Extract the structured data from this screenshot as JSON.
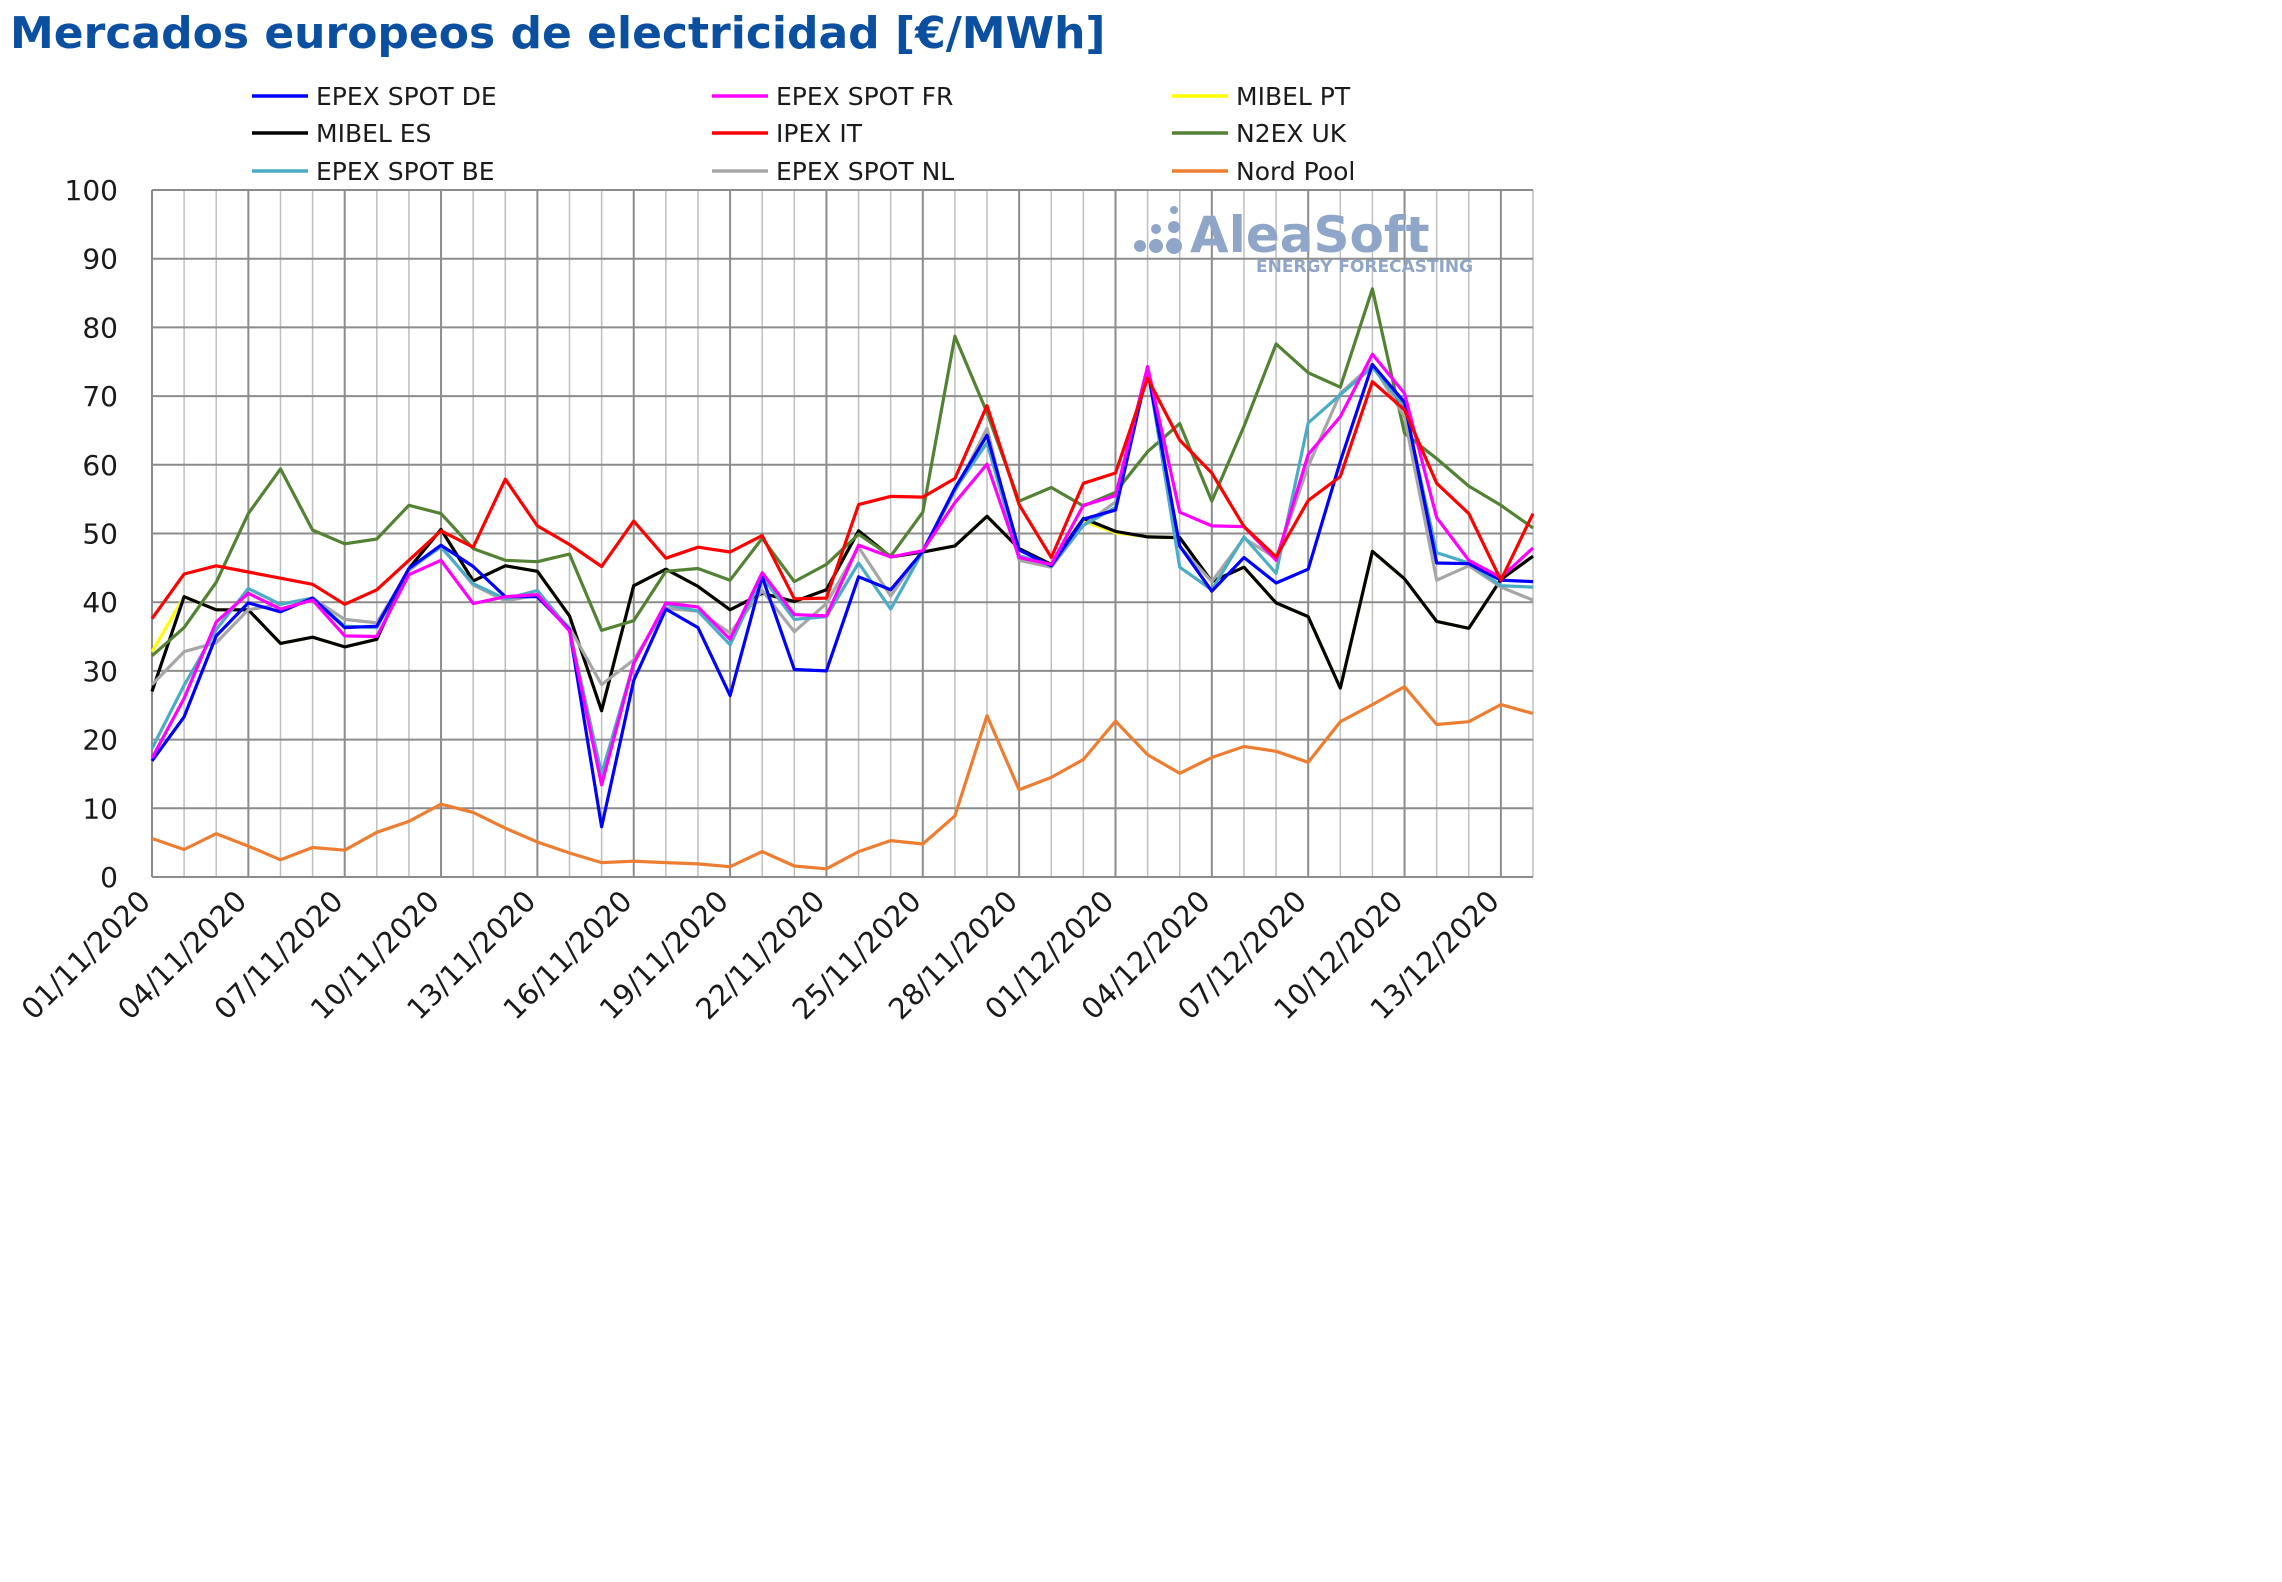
{
  "title": "Mercados europeos de electricidad [€/MWh]",
  "watermark": {
    "brand": "AleaSoft",
    "tagline": "ENERGY FORECASTING",
    "color": "#8fa6c8"
  },
  "colors": {
    "title": "#0b4fa1",
    "grid": "#bfbfbf",
    "grid_major": "#8c8c8c"
  },
  "chart_data": {
    "type": "line",
    "title": "Mercados europeos de electricidad [€/MWh]",
    "xlabel": "",
    "ylabel": "",
    "ylim": [
      0,
      100
    ],
    "yticks": [
      0,
      10,
      20,
      30,
      40,
      50,
      60,
      70,
      80,
      90,
      100
    ],
    "grid": true,
    "legend_position": "top",
    "x": [
      "01/11/2020",
      "02/11/2020",
      "03/11/2020",
      "04/11/2020",
      "05/11/2020",
      "06/11/2020",
      "07/11/2020",
      "08/11/2020",
      "09/11/2020",
      "10/11/2020",
      "11/11/2020",
      "12/11/2020",
      "13/11/2020",
      "14/11/2020",
      "15/11/2020",
      "16/11/2020",
      "17/11/2020",
      "18/11/2020",
      "19/11/2020",
      "20/11/2020",
      "21/11/2020",
      "22/11/2020",
      "23/11/2020",
      "24/11/2020",
      "25/11/2020",
      "26/11/2020",
      "27/11/2020",
      "28/11/2020",
      "29/11/2020",
      "30/11/2020",
      "01/12/2020",
      "02/12/2020",
      "03/12/2020",
      "04/12/2020",
      "05/12/2020",
      "06/12/2020",
      "07/12/2020",
      "08/12/2020",
      "09/12/2020",
      "10/12/2020",
      "11/12/2020",
      "12/12/2020",
      "13/12/2020",
      "14/12/2020"
    ],
    "xtick_labels": [
      "01/11/2020",
      "04/11/2020",
      "07/11/2020",
      "10/11/2020",
      "13/11/2020",
      "16/11/2020",
      "19/11/2020",
      "22/11/2020",
      "25/11/2020",
      "28/11/2020",
      "01/12/2020",
      "04/12/2020",
      "07/12/2020",
      "10/12/2020",
      "13/12/2020"
    ],
    "series": [
      {
        "name": "MIBEL PT",
        "color": "#ffff00",
        "values": [
          32.8,
          40.8,
          38.9,
          38.9,
          34.0,
          34.9,
          33.5,
          34.6,
          44.9,
          50.6,
          43.1,
          45.3,
          44.5,
          38.0,
          24.2,
          42.4,
          44.8,
          42.3,
          38.9,
          41.3,
          40.1,
          41.8,
          50.4,
          46.6,
          47.3,
          48.2,
          52.5,
          47.8,
          45.5,
          51.8,
          50.1,
          49.5,
          49.4,
          43.0,
          45.1,
          39.9,
          37.9,
          27.5,
          47.4,
          43.4,
          37.2,
          36.2,
          43.3,
          46.7
        ]
      },
      {
        "name": "MIBEL ES",
        "color": "#000000",
        "values": [
          27.0,
          40.8,
          38.9,
          38.9,
          34.0,
          34.9,
          33.5,
          34.6,
          44.9,
          50.6,
          43.1,
          45.3,
          44.5,
          38.0,
          24.2,
          42.4,
          44.8,
          42.3,
          38.9,
          41.3,
          40.1,
          41.8,
          50.4,
          46.6,
          47.3,
          48.2,
          52.5,
          47.8,
          45.5,
          52.2,
          50.3,
          49.5,
          49.4,
          43.0,
          45.1,
          39.9,
          37.9,
          27.5,
          47.4,
          43.4,
          37.2,
          36.2,
          43.3,
          46.7
        ]
      },
      {
        "name": "N2EX UK",
        "color": "#548235",
        "values": [
          32.2,
          36.3,
          42.9,
          52.9,
          59.4,
          50.5,
          48.5,
          49.2,
          54.1,
          52.9,
          47.8,
          46.1,
          45.9,
          47.0,
          35.9,
          37.3,
          44.5,
          44.9,
          43.2,
          49.3,
          43.0,
          45.5,
          49.9,
          46.7,
          53.1,
          78.7,
          67.6,
          54.7,
          56.7,
          54.0,
          56.0,
          61.9,
          66.0,
          54.7,
          65.6,
          77.6,
          73.4,
          71.3,
          85.6,
          64.6,
          60.9,
          56.9,
          54.1,
          50.8
        ]
      },
      {
        "name": "EPEX SPOT NL",
        "color": "#a6a6a6",
        "values": [
          28.0,
          32.8,
          34.1,
          38.9,
          39.7,
          40.6,
          37.5,
          37.0,
          44.6,
          48.2,
          42.5,
          40.2,
          41.0,
          36.3,
          28.0,
          31.6,
          39.1,
          38.7,
          35.5,
          41.7,
          35.7,
          39.8,
          48.0,
          40.9,
          47.6,
          56.1,
          65.3,
          46.1,
          45.1,
          51.2,
          54.6,
          74.3,
          48.1,
          43.0,
          49.3,
          46.4,
          59.8,
          70.4,
          74.6,
          67.0,
          43.2,
          45.3,
          42.2,
          40.3
        ]
      },
      {
        "name": "EPEX SPOT BE",
        "color": "#4bacc6",
        "values": [
          18.7,
          27.9,
          36.0,
          42.0,
          39.7,
          40.6,
          36.5,
          36.3,
          44.9,
          48.0,
          42.7,
          40.5,
          41.7,
          36.0,
          15.0,
          31.1,
          39.7,
          38.7,
          33.8,
          43.7,
          37.5,
          37.9,
          45.7,
          39.0,
          47.4,
          56.4,
          63.2,
          46.8,
          45.3,
          51.2,
          53.8,
          74.1,
          45.1,
          41.8,
          49.5,
          44.2,
          66.1,
          70.2,
          74.2,
          68.5,
          47.2,
          45.7,
          42.4,
          42.2
        ]
      },
      {
        "name": "EPEX SPOT DE",
        "color": "#0000ff",
        "values": [
          16.9,
          23.3,
          35.1,
          39.9,
          38.6,
          40.6,
          36.3,
          36.5,
          44.9,
          48.3,
          45.2,
          40.8,
          40.8,
          36.0,
          7.3,
          28.6,
          39.0,
          36.3,
          26.4,
          43.7,
          30.2,
          30.0,
          43.7,
          41.8,
          47.4,
          56.6,
          64.3,
          47.6,
          45.3,
          52.1,
          53.4,
          73.8,
          48.2,
          41.6,
          46.5,
          42.8,
          44.8,
          60.5,
          74.6,
          69.1,
          45.7,
          45.6,
          43.2,
          43.0
        ]
      },
      {
        "name": "EPEX SPOT FR",
        "color": "#ff00ff",
        "values": [
          17.3,
          26.0,
          37.1,
          41.3,
          39.0,
          40.3,
          35.1,
          35.0,
          44.0,
          46.1,
          39.8,
          40.8,
          41.1,
          35.8,
          13.4,
          31.1,
          39.9,
          39.3,
          34.6,
          44.3,
          38.2,
          38.0,
          48.3,
          46.6,
          47.5,
          54.5,
          60.1,
          46.5,
          45.5,
          54.1,
          55.5,
          74.3,
          53.1,
          51.1,
          51.0,
          46.1,
          61.5,
          67.0,
          76.1,
          70.4,
          52.3,
          46.1,
          43.6,
          47.9
        ]
      },
      {
        "name": "IPEX IT",
        "color": "#ff0000",
        "values": [
          37.6,
          44.1,
          45.3,
          44.4,
          43.5,
          42.6,
          39.7,
          41.8,
          46.1,
          50.4,
          48.0,
          57.9,
          51.1,
          48.4,
          45.2,
          51.8,
          46.4,
          48.0,
          47.3,
          49.7,
          40.5,
          40.6,
          54.2,
          55.4,
          55.3,
          58.0,
          68.6,
          54.2,
          46.5,
          57.3,
          58.8,
          72.6,
          63.6,
          58.8,
          51.0,
          46.6,
          54.8,
          58.3,
          72.1,
          68.0,
          57.3,
          52.9,
          43.2,
          52.9
        ]
      },
      {
        "name": "Nord Pool",
        "color": "#ed7d31",
        "values": [
          5.6,
          4.0,
          6.3,
          4.5,
          2.5,
          4.3,
          3.9,
          6.5,
          8.1,
          10.6,
          9.4,
          7.1,
          5.1,
          3.5,
          2.1,
          2.3,
          2.1,
          1.9,
          1.5,
          3.7,
          1.6,
          1.2,
          3.7,
          5.3,
          4.8,
          8.9,
          23.5,
          12.7,
          14.5,
          17.1,
          22.7,
          17.8,
          15.1,
          17.4,
          19.0,
          18.3,
          16.7,
          22.6,
          25.1,
          27.7,
          22.2,
          22.6,
          25.1,
          23.8
        ]
      }
    ]
  },
  "legend": [
    {
      "name": "EPEX SPOT DE",
      "color": "#0000ff"
    },
    {
      "name": "EPEX SPOT FR",
      "color": "#ff00ff"
    },
    {
      "name": "MIBEL PT",
      "color": "#ffff00"
    },
    {
      "name": "MIBEL ES",
      "color": "#000000"
    },
    {
      "name": "IPEX IT",
      "color": "#ff0000"
    },
    {
      "name": "N2EX UK",
      "color": "#548235"
    },
    {
      "name": "EPEX SPOT BE",
      "color": "#4bacc6"
    },
    {
      "name": "EPEX SPOT NL",
      "color": "#a6a6a6"
    },
    {
      "name": "Nord Pool",
      "color": "#ed7d31"
    }
  ]
}
